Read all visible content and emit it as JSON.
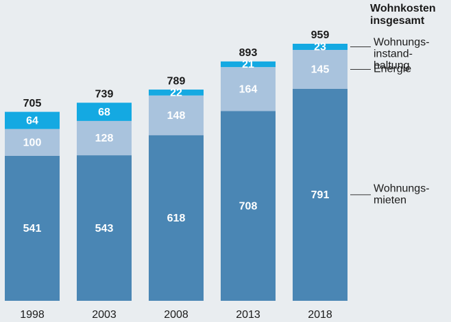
{
  "chart_data": {
    "type": "bar",
    "stacked": true,
    "categories": [
      "1998",
      "2003",
      "2008",
      "2013",
      "2018"
    ],
    "series": [
      {
        "name": "Wohnungs-\nmieten",
        "color": "#4a86b4",
        "values": [
          541,
          543,
          618,
          708,
          791
        ]
      },
      {
        "name": "Energie",
        "color": "#a9c3dd",
        "values": [
          100,
          128,
          148,
          164,
          145
        ]
      },
      {
        "name": "Wohnungs-\ninstand-\nhaltung",
        "color": "#14a9e2",
        "values": [
          64,
          68,
          22,
          21,
          23
        ]
      }
    ],
    "totals_label": "Wohnkosten\ninsgesamt",
    "totals": [
      705,
      739,
      789,
      893,
      959
    ]
  }
}
